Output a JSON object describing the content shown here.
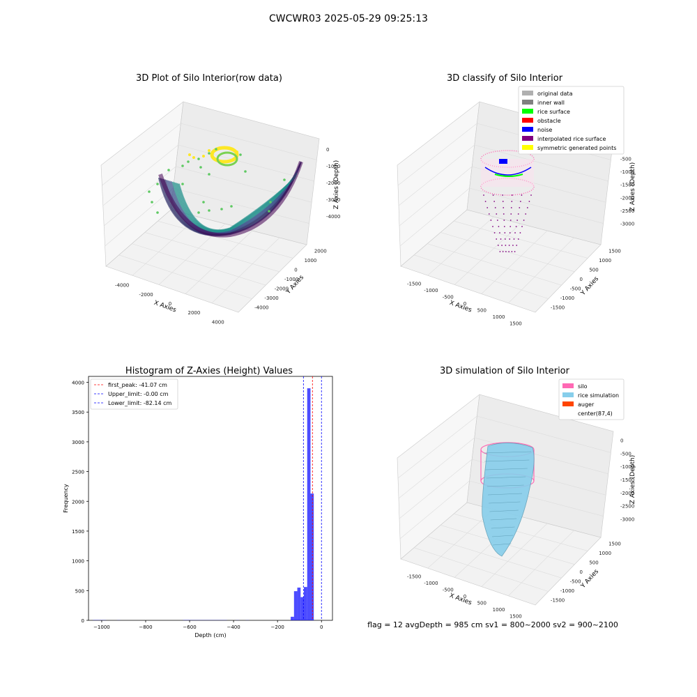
{
  "suptitle": "CWCWR03 2025-05-29 09:25:13",
  "panels": {
    "raw": {
      "title": "3D Plot of Silo Interior(row data)",
      "xlabel": "X Axies",
      "ylabel": "Y Axies",
      "zlabel": "Z Axies (Depth)",
      "xticks": [
        "-4000",
        "-2000",
        "0",
        "2000",
        "4000"
      ],
      "yticks": [
        "2000",
        "1000",
        "0",
        "-1000",
        "-2000",
        "-3000",
        "-4000"
      ],
      "zticks": [
        "0",
        "-1000",
        "-2000",
        "-3000",
        "-4000"
      ],
      "colormap": [
        "#440154",
        "#3b528b",
        "#21918c",
        "#5ec962",
        "#fde725"
      ]
    },
    "classify": {
      "title": "3D classify of Silo Interior",
      "xlabel": "X Axies",
      "ylabel": "Y Axies",
      "zlabel": "Z Axies (Depth)",
      "xticks": [
        "-1500",
        "-1000",
        "-500",
        "0",
        "500",
        "1000",
        "1500"
      ],
      "yticks": [
        "1500",
        "1000",
        "500",
        "0",
        "-500",
        "-1000",
        "-1500"
      ],
      "zticks": [
        "-500",
        "-1000",
        "-1500",
        "-2000",
        "-2500",
        "-3000"
      ],
      "legend": [
        {
          "label": "original data",
          "color": "#b0b0b0"
        },
        {
          "label": "inner wall",
          "color": "#808080"
        },
        {
          "label": "rice surface",
          "color": "#00ff00"
        },
        {
          "label": "obstacle",
          "color": "#ff0000"
        },
        {
          "label": "noise",
          "color": "#0000ff"
        },
        {
          "label": "interpolated rice surface",
          "color": "#800080"
        },
        {
          "label": "symmetric generated points",
          "color": "#ffff00"
        }
      ]
    },
    "histogram": {
      "title": "Histogram of Z-Axies (Height) Values",
      "xlabel": "Depth (cm)",
      "ylabel": "Frequency",
      "xticks": [
        "−1000",
        "−800",
        "−600",
        "−400",
        "−200",
        "0"
      ],
      "yticks": [
        "0",
        "500",
        "1000",
        "1500",
        "2000",
        "2500",
        "3000",
        "3500",
        "4000"
      ],
      "legend": [
        {
          "label": "first_peak: -41.07 cm",
          "color": "#ff0000"
        },
        {
          "label": "Upper_limit: -0.00 cm",
          "color": "#0000ff"
        },
        {
          "label": "Lower_limit: -82.14 cm",
          "color": "#0000ff"
        }
      ]
    },
    "simulation": {
      "title": "3D simulation of Silo Interior",
      "xlabel": "X Axies",
      "ylabel": "Y Axies",
      "zlabel": "Z Axies (Depth)",
      "xticks": [
        "-1500",
        "-1000",
        "-500",
        "0",
        "500",
        "1000",
        "1500"
      ],
      "yticks": [
        "1500",
        "1000",
        "500",
        "0",
        "-500",
        "-1000",
        "-1500"
      ],
      "zticks": [
        "0",
        "-500",
        "-1000",
        "-1500",
        "-2000",
        "-2500",
        "-3000"
      ],
      "legend": [
        {
          "label": "silo",
          "color": "#ff69b4"
        },
        {
          "label": "rice simulation",
          "color": "#87ceeb"
        },
        {
          "label": "auger",
          "color": "#ff4500"
        },
        {
          "label": "center(87,4)",
          "color": ""
        }
      ],
      "footer": "flag = 12   avgDepth = 985 cm  sv1 = 800~2000  sv2 = 900~2100"
    }
  },
  "chart_data": [
    {
      "type": "scatter",
      "title": "3D Plot of Silo Interior(row data)",
      "xlabel": "X Axies",
      "ylabel": "Y Axies",
      "zlabel": "Z Axies (Depth)",
      "xlim": [
        -4500,
        4500
      ],
      "ylim": [
        -4000,
        2000
      ],
      "zlim": [
        -4500,
        0
      ],
      "grid": true
    },
    {
      "type": "scatter",
      "title": "3D classify of Silo Interior",
      "xlabel": "X Axies",
      "ylabel": "Y Axies",
      "zlabel": "Z Axies (Depth)",
      "xlim": [
        -1500,
        1500
      ],
      "ylim": [
        -1500,
        1500
      ],
      "zlim": [
        -3200,
        -200
      ],
      "legend_position": "upper right",
      "grid": true
    },
    {
      "type": "bar",
      "title": "Histogram of Z-Axies (Height) Values",
      "xlabel": "Depth (cm)",
      "ylabel": "Frequency",
      "xlim": [
        -1060,
        50
      ],
      "ylim": [
        0,
        4100
      ],
      "bins": [
        {
          "x0": -1040,
          "x1": -1010,
          "count": 4
        },
        {
          "x0": -1010,
          "x1": -980,
          "count": 3
        },
        {
          "x0": -930,
          "x1": -915,
          "count": 2
        },
        {
          "x0": -630,
          "x1": -600,
          "count": 4
        },
        {
          "x0": -600,
          "x1": -430,
          "count": 3
        },
        {
          "x0": -390,
          "x1": -375,
          "count": 2
        },
        {
          "x0": -345,
          "x1": -330,
          "count": 2
        },
        {
          "x0": -140,
          "x1": -125,
          "count": 60
        },
        {
          "x0": -125,
          "x1": -110,
          "count": 490
        },
        {
          "x0": -110,
          "x1": -95,
          "count": 550
        },
        {
          "x0": -95,
          "x1": -80,
          "count": 390
        },
        {
          "x0": -80,
          "x1": -65,
          "count": 560
        },
        {
          "x0": -65,
          "x1": -50,
          "count": 3900
        },
        {
          "x0": -50,
          "x1": -35,
          "count": 2130
        }
      ],
      "lines": [
        {
          "name": "first_peak",
          "x": -41.07,
          "color": "#ff0000"
        },
        {
          "name": "Upper_limit",
          "x": -0.0,
          "color": "#0000ff"
        },
        {
          "name": "Lower_limit",
          "x": -82.14,
          "color": "#0000ff"
        }
      ],
      "bar_color": "#0000ff",
      "legend_position": "upper left",
      "grid": false
    },
    {
      "type": "scatter",
      "title": "3D simulation of Silo Interior",
      "xlabel": "X Axies",
      "ylabel": "Y Axies",
      "zlabel": "Z Axies (Depth)",
      "xlim": [
        -1500,
        1500
      ],
      "ylim": [
        -1500,
        1500
      ],
      "zlim": [
        -3200,
        200
      ],
      "legend_position": "upper right",
      "grid": true
    }
  ]
}
